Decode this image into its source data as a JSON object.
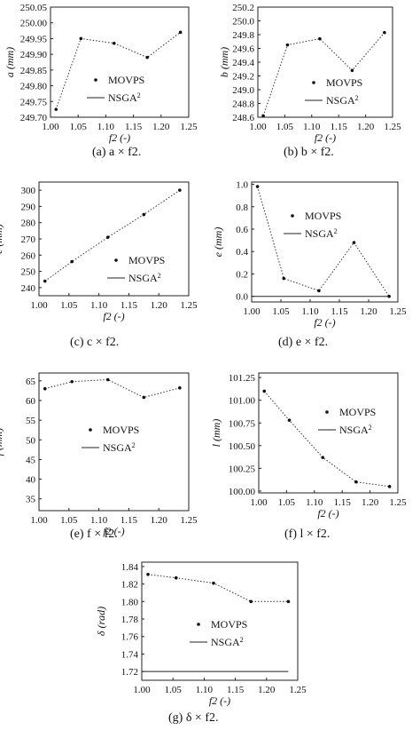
{
  "chart_data": [
    {
      "type": "scatter",
      "caption": "(a) a × f2.",
      "ylabel": "a (mm)",
      "xlabel": "f2 (-)",
      "xlim": [
        1.0,
        1.25
      ],
      "ylim": [
        249.7,
        250.05
      ],
      "xticks": [
        "1.00",
        "1.05",
        "1.10",
        "1.15",
        "1.20",
        "1.25"
      ],
      "yticks": [
        "249.70",
        "249.75",
        "249.80",
        "249.85",
        "249.90",
        "249.95",
        "250.00",
        "250.05"
      ],
      "legend": [
        "MOVPS",
        "NSGA2"
      ],
      "legend_placement": "lower-middle",
      "series": [
        {
          "name": "MOVPS",
          "x": [
            1.01,
            1.055,
            1.115,
            1.175,
            1.235
          ],
          "y": [
            249.725,
            249.95,
            249.935,
            249.89,
            249.97
          ]
        }
      ]
    },
    {
      "type": "scatter",
      "caption": "(b) b × f2.",
      "ylabel": "b (mm)",
      "xlabel": "f2 (-)",
      "xlim": [
        1.0,
        1.25
      ],
      "ylim": [
        248.6,
        250.2
      ],
      "xticks": [
        "1.00",
        "1.05",
        "1.10",
        "1.15",
        "1.20",
        "1.25"
      ],
      "yticks": [
        "248.6",
        "248.8",
        "249.0",
        "249.2",
        "249.4",
        "249.6",
        "249.8",
        "250.0",
        "250.2"
      ],
      "legend": [
        "MOVPS",
        "NSGA2"
      ],
      "legend_placement": "lower-middle",
      "series": [
        {
          "name": "MOVPS",
          "x": [
            1.01,
            1.055,
            1.115,
            1.175,
            1.235
          ],
          "y": [
            248.62,
            249.65,
            249.74,
            249.28,
            249.83
          ]
        }
      ]
    },
    {
      "type": "scatter",
      "caption": "(c) c × f2.",
      "ylabel": "c (mm)",
      "xlabel": "f2 (-)",
      "xlim": [
        1.0,
        1.25
      ],
      "ylim": [
        235,
        305
      ],
      "xticks": [
        "1.00",
        "1.05",
        "1.10",
        "1.15",
        "1.20",
        "1.25"
      ],
      "yticks": [
        "240",
        "250",
        "260",
        "270",
        "280",
        "290",
        "300"
      ],
      "legend": [
        "MOVPS",
        "NSGA2"
      ],
      "legend_placement": "lower-right",
      "series": [
        {
          "name": "MOVPS",
          "x": [
            1.01,
            1.055,
            1.115,
            1.175,
            1.235
          ],
          "y": [
            244,
            256,
            271,
            285,
            300
          ]
        }
      ]
    },
    {
      "type": "scatter",
      "caption": "(d) e × f2.",
      "ylabel": "e (mm)",
      "xlabel": "f2 (-)",
      "xlim": [
        1.0,
        1.25
      ],
      "ylim": [
        -0.05,
        1.02
      ],
      "xticks": [
        "1.00",
        "1.05",
        "1.10",
        "1.15",
        "1.20",
        "1.25"
      ],
      "yticks": [
        "0.0",
        "0.2",
        "0.4",
        "0.6",
        "0.8",
        "1.0"
      ],
      "legend": [
        "MOVPS",
        "NSGA2"
      ],
      "legend_placement": "upper-middle",
      "series": [
        {
          "name": "MOVPS",
          "x": [
            1.01,
            1.055,
            1.115,
            1.175,
            1.235
          ],
          "y": [
            0.98,
            0.16,
            0.05,
            0.48,
            0.0
          ]
        },
        {
          "name": "NSGA2",
          "x": [
            1.0,
            1.235
          ],
          "y": [
            0.0,
            0.0
          ]
        }
      ]
    },
    {
      "type": "scatter",
      "caption": "(e) f × f2.",
      "ylabel": "f (mm)",
      "xlabel": "f2 (-)",
      "xlim": [
        1.0,
        1.25
      ],
      "ylim": [
        32,
        67
      ],
      "xticks": [
        "1.00",
        "1.05",
        "1.10",
        "1.15",
        "1.20",
        "1.25"
      ],
      "yticks": [
        "35",
        "40",
        "45",
        "50",
        "55",
        "60",
        "65"
      ],
      "legend": [
        "MOVPS",
        "NSGA2"
      ],
      "legend_placement": "middle",
      "series": [
        {
          "name": "MOVPS",
          "x": [
            1.01,
            1.055,
            1.115,
            1.175,
            1.235
          ],
          "y": [
            63,
            64.8,
            65.3,
            60.8,
            63.2
          ]
        }
      ]
    },
    {
      "type": "scatter",
      "caption": "(f) l × f2.",
      "ylabel": "l (mm)",
      "xlabel": "f2 (-)",
      "xlim": [
        1.0,
        1.25
      ],
      "ylim": [
        99.98,
        101.3
      ],
      "xticks": [
        "1.00",
        "1.05",
        "1.10",
        "1.15",
        "1.20",
        "1.25"
      ],
      "yticks": [
        "100.00",
        "100.25",
        "100.50",
        "100.75",
        "101.00",
        "101.25"
      ],
      "legend": [
        "MOVPS",
        "NSGA2"
      ],
      "legend_placement": "upper-right",
      "series": [
        {
          "name": "MOVPS",
          "x": [
            1.01,
            1.055,
            1.115,
            1.175,
            1.235
          ],
          "y": [
            101.1,
            100.78,
            100.37,
            100.1,
            100.05
          ]
        }
      ]
    },
    {
      "type": "scatter",
      "caption": "(g) δ × f2.",
      "ylabel": "δ (rad)",
      "xlabel": "f2 (-)",
      "xlim": [
        1.0,
        1.25
      ],
      "ylim": [
        1.71,
        1.845
      ],
      "xticks": [
        "1.00",
        "1.05",
        "1.10",
        "1.15",
        "1.20",
        "1.25"
      ],
      "yticks": [
        "1.72",
        "1.74",
        "1.76",
        "1.78",
        "1.80",
        "1.82",
        "1.84"
      ],
      "legend": [
        "MOVPS",
        "NSGA2"
      ],
      "legend_placement": "middle",
      "series": [
        {
          "name": "MOVPS",
          "x": [
            1.01,
            1.055,
            1.115,
            1.175,
            1.235
          ],
          "y": [
            1.831,
            1.827,
            1.821,
            1.8,
            1.8
          ]
        },
        {
          "name": "NSGA2",
          "x": [
            1.0,
            1.235
          ],
          "y": [
            1.72,
            1.72
          ]
        }
      ]
    }
  ]
}
